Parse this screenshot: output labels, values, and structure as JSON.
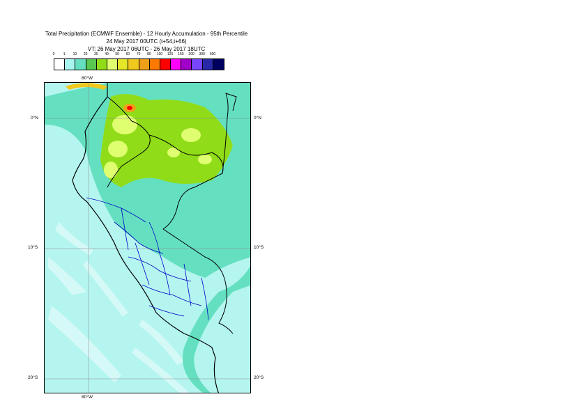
{
  "title": {
    "line1": "Total Precipitation (ECMWF Ensemble) - 12 Hourly Accumulation - 95th Percentile",
    "line2": "24 May 2017 00UTC (t+54,t+66)",
    "line3": "VT: 26 May 2017 06UTC - 26 May 2017 18UTC"
  },
  "legend": {
    "thresholds": [
      "0",
      "1",
      "10",
      "20",
      "30",
      "40",
      "50",
      "60",
      "70",
      "80",
      "100",
      "125",
      "150",
      "200",
      "300",
      "500"
    ],
    "colors": [
      "#ffffff",
      "#a8f5f0",
      "#64e0c0",
      "#58c850",
      "#90dc18",
      "#e0ff70",
      "#e6e628",
      "#f0c81e",
      "#f0a018",
      "#ff7800",
      "#ff0000",
      "#ff00ff",
      "#a000c8",
      "#7846ff",
      "#2828a8",
      "#000060"
    ]
  },
  "map": {
    "lat_labels": [
      "0°N",
      "10°S",
      "20°S"
    ],
    "lon_label": "80°W",
    "base_colors": {
      "ocean_light": "#b4f5f0",
      "rain_teal": "#64e0c0",
      "rain_green": "#90dc18",
      "rain_yellow": "#e0ff70",
      "country_border": "#000000",
      "region_border": "#0000c8"
    }
  }
}
